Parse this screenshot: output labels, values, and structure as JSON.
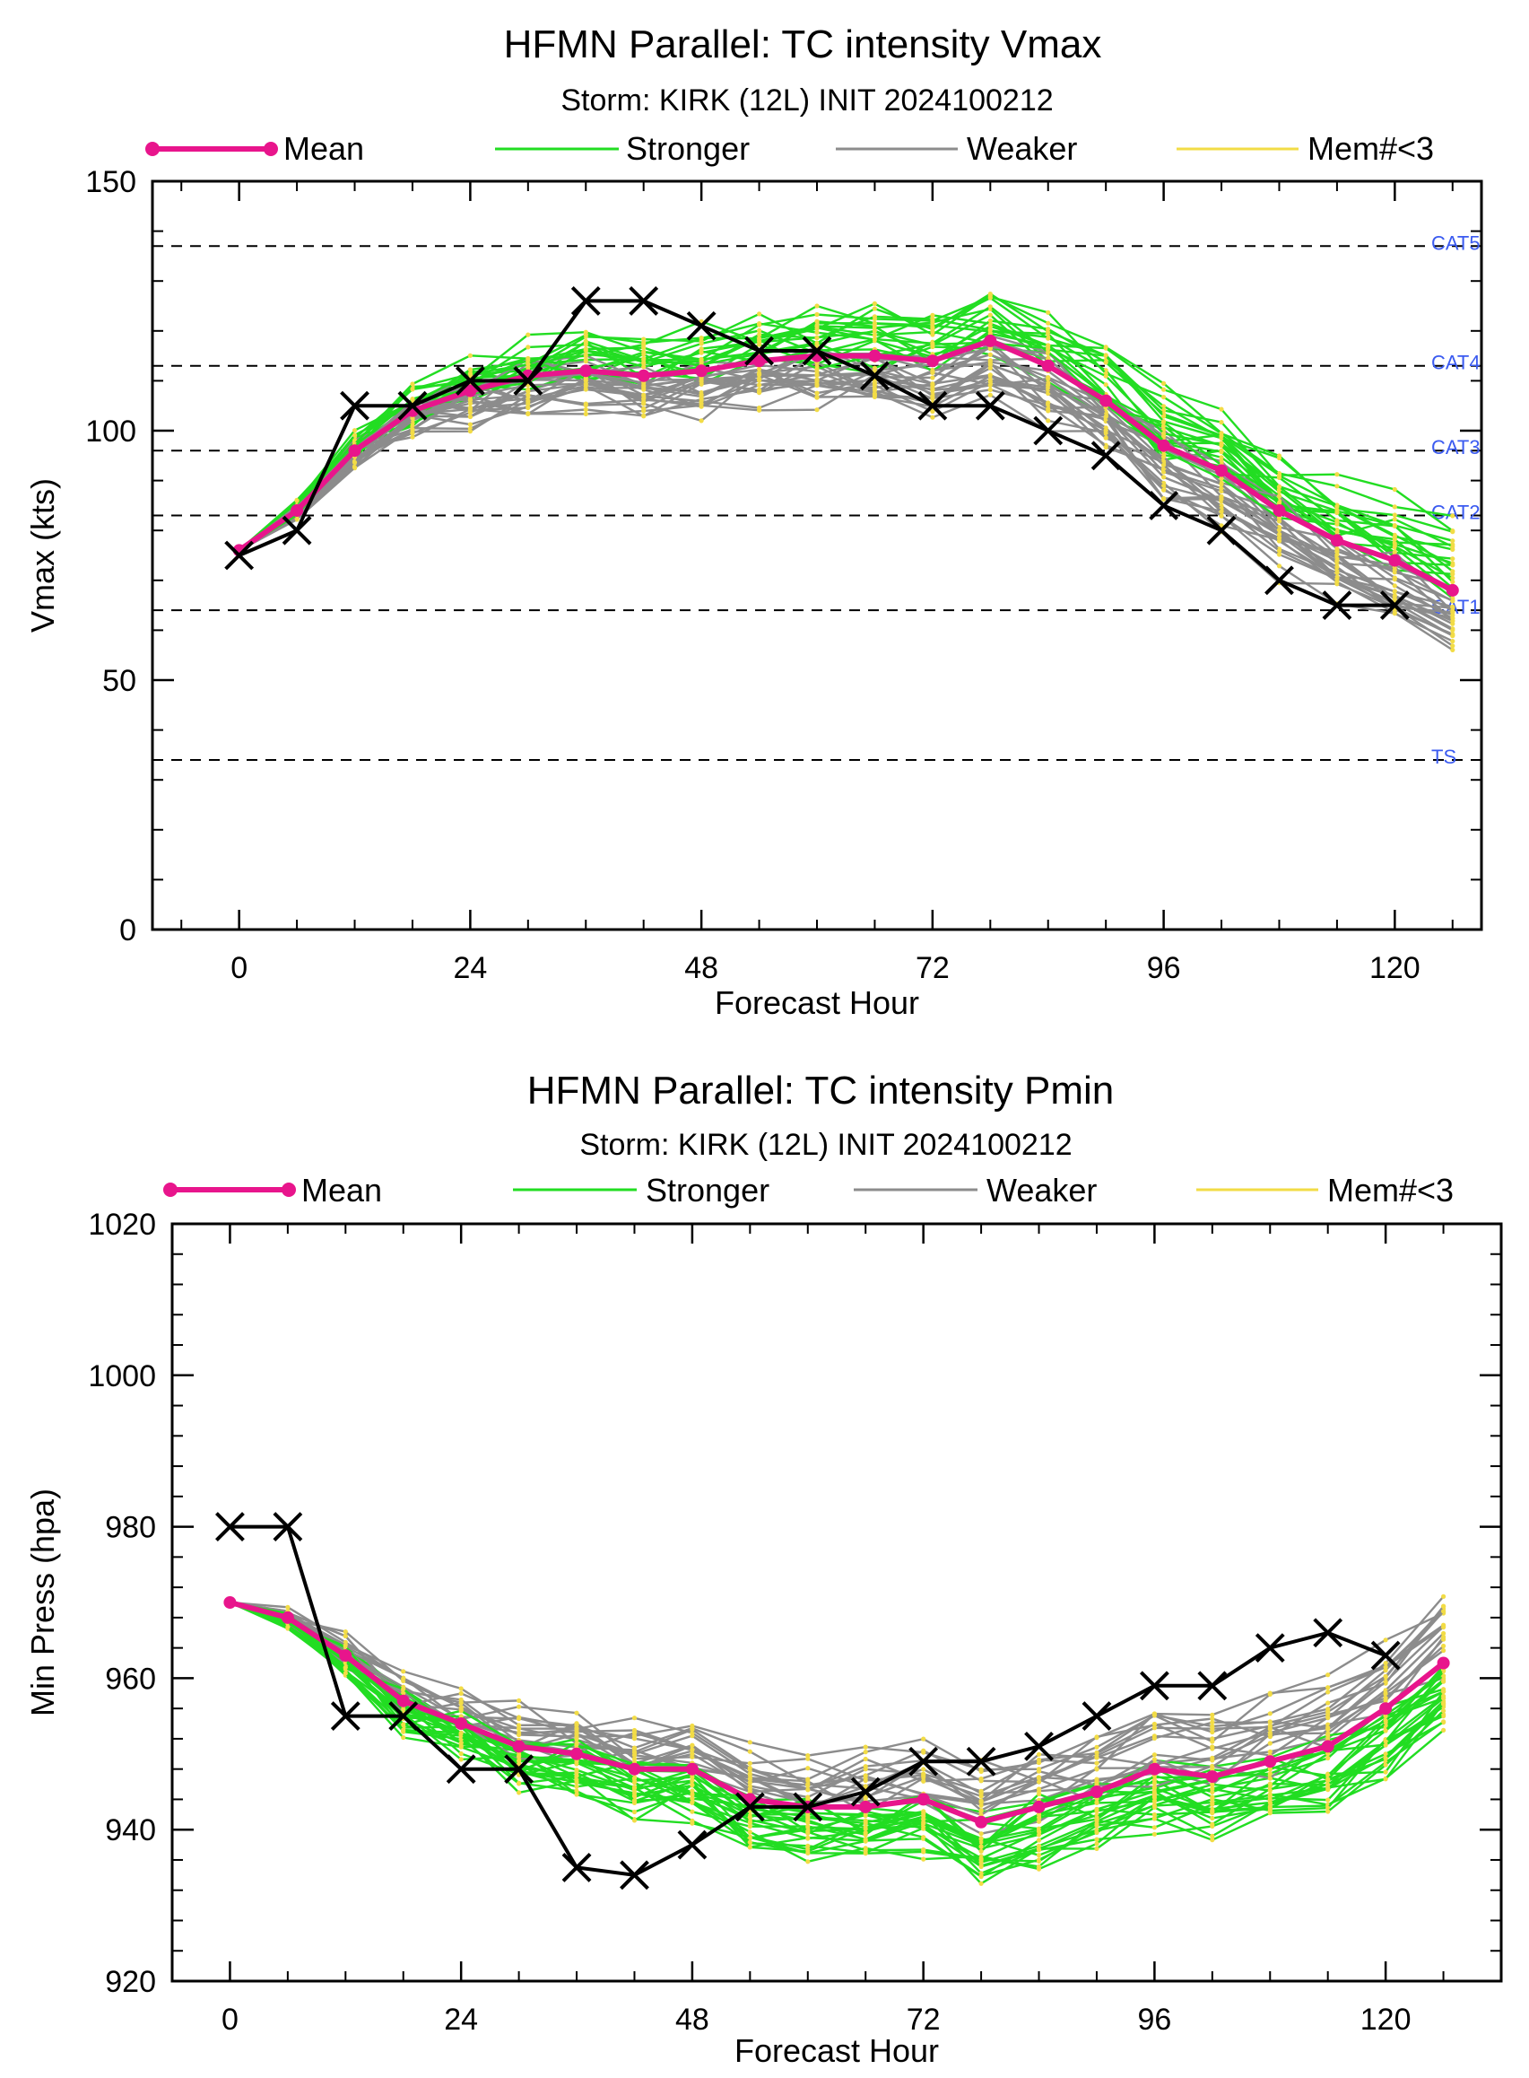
{
  "chart_data": [
    {
      "type": "line",
      "title": "HFMN Parallel: TC intensity Vmax",
      "subtitle": "Storm: KIRK (12L) INIT 2024100212",
      "xlabel": "Forecast Hour",
      "ylabel": "Vmax (kts)",
      "xlim": [
        -9,
        129
      ],
      "ylim": [
        0,
        150
      ],
      "xticks": [
        0,
        24,
        48,
        72,
        96,
        120
      ],
      "yticks": [
        0,
        50,
        100,
        150
      ],
      "grid": false,
      "legend_position": "top",
      "legend": [
        {
          "label": "Mean",
          "color": "#e8158c",
          "style": "thick-dots"
        },
        {
          "label": "Stronger",
          "color": "#22dd22",
          "style": "line"
        },
        {
          "label": "Weaker",
          "color": "#8c8c8c",
          "style": "line"
        },
        {
          "label": "Mem#<3",
          "color": "#f2dc46",
          "style": "line"
        }
      ],
      "reference_lines": [
        {
          "label": "CAT5",
          "value": 137
        },
        {
          "label": "CAT4",
          "value": 113
        },
        {
          "label": "CAT3",
          "value": 96
        },
        {
          "label": "CAT2",
          "value": 83
        },
        {
          "label": "CAT1",
          "value": 64
        },
        {
          "label": "TS",
          "value": 34
        }
      ],
      "x": [
        0,
        6,
        12,
        18,
        24,
        30,
        36,
        42,
        48,
        54,
        60,
        66,
        72,
        78,
        84,
        90,
        96,
        102,
        108,
        114,
        120,
        126
      ],
      "series": [
        {
          "name": "Mean",
          "color": "#e8158c",
          "values": [
            76,
            84,
            96,
            104,
            108,
            111,
            112,
            111,
            112,
            114,
            115,
            115,
            114,
            118,
            113,
            106,
            97,
            92,
            84,
            78,
            74,
            68
          ]
        },
        {
          "name": "Observed",
          "color": "#000000",
          "values": [
            75,
            80,
            105,
            105,
            110,
            110,
            126,
            126,
            121,
            116,
            116,
            111,
            105,
            105,
            100,
            95,
            85,
            80,
            70,
            65,
            65,
            null
          ]
        }
      ]
    },
    {
      "type": "line",
      "title": "HFMN Parallel: TC intensity Pmin",
      "subtitle": "Storm: KIRK (12L) INIT 2024100212",
      "xlabel": "Forecast Hour",
      "ylabel": "Min Press (hpa)",
      "xlim": [
        -6,
        132
      ],
      "ylim": [
        920,
        1020
      ],
      "xticks": [
        0,
        24,
        48,
        72,
        96,
        120
      ],
      "yticks": [
        920,
        940,
        960,
        980,
        1000,
        1020
      ],
      "grid": false,
      "legend_position": "top",
      "legend": [
        {
          "label": "Mean",
          "color": "#e8158c",
          "style": "thick-dots"
        },
        {
          "label": "Stronger",
          "color": "#22dd22",
          "style": "line"
        },
        {
          "label": "Weaker",
          "color": "#8c8c8c",
          "style": "line"
        },
        {
          "label": "Mem#<3",
          "color": "#f2dc46",
          "style": "line"
        }
      ],
      "x": [
        0,
        6,
        12,
        18,
        24,
        30,
        36,
        42,
        48,
        54,
        60,
        66,
        72,
        78,
        84,
        90,
        96,
        102,
        108,
        114,
        120,
        126
      ],
      "series": [
        {
          "name": "Mean",
          "color": "#e8158c",
          "values": [
            970,
            968,
            963,
            957,
            954,
            951,
            950,
            948,
            948,
            944,
            943,
            943,
            944,
            941,
            943,
            945,
            948,
            947,
            949,
            951,
            956,
            962
          ]
        },
        {
          "name": "Observed",
          "color": "#000000",
          "values": [
            980,
            980,
            955,
            955,
            948,
            948,
            935,
            934,
            938,
            943,
            943,
            945,
            949,
            949,
            951,
            955,
            959,
            959,
            964,
            966,
            963,
            null
          ]
        }
      ]
    }
  ]
}
